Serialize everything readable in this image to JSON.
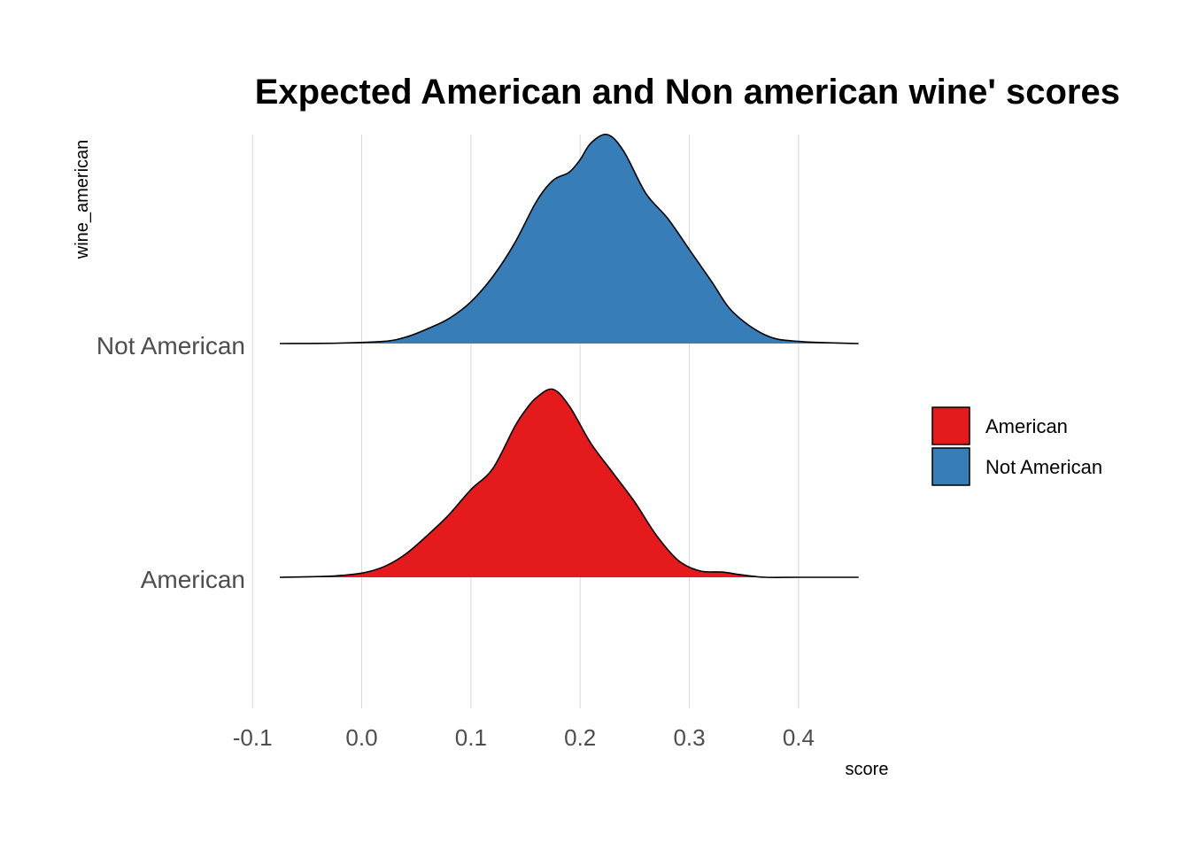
{
  "chart_data": {
    "type": "area",
    "subtype": "ridgeline-density",
    "title": "Expected American and Non american wine' scores",
    "xlabel": "score",
    "ylabel": "wine_american",
    "xlim": [
      -0.1,
      0.46
    ],
    "x_ticks": [
      "-0.1",
      "0.0",
      "0.1",
      "0.2",
      "0.3",
      "0.4"
    ],
    "categories": [
      "American",
      "Not American"
    ],
    "grid": "vertical major gridlines only",
    "legend_position": "right",
    "series": [
      {
        "name": "American",
        "color": "#e41a1c",
        "x": [
          -0.075,
          -0.03,
          0.0,
          0.02,
          0.04,
          0.06,
          0.08,
          0.1,
          0.12,
          0.14,
          0.15,
          0.16,
          0.175,
          0.19,
          0.21,
          0.23,
          0.25,
          0.27,
          0.29,
          0.31,
          0.33,
          0.35,
          0.37,
          0.4,
          0.455
        ],
        "density": [
          0.0,
          0.005,
          0.02,
          0.05,
          0.11,
          0.2,
          0.3,
          0.42,
          0.52,
          0.72,
          0.8,
          0.86,
          0.9,
          0.82,
          0.64,
          0.5,
          0.36,
          0.2,
          0.08,
          0.03,
          0.025,
          0.01,
          0.0,
          0.0,
          0.0
        ]
      },
      {
        "name": "Not American",
        "color": "#377eb8",
        "x": [
          -0.075,
          -0.02,
          0.02,
          0.04,
          0.06,
          0.08,
          0.1,
          0.12,
          0.14,
          0.16,
          0.175,
          0.19,
          0.2,
          0.21,
          0.225,
          0.24,
          0.26,
          0.28,
          0.3,
          0.32,
          0.34,
          0.37,
          0.4,
          0.455
        ],
        "density": [
          0.0,
          0.002,
          0.01,
          0.03,
          0.07,
          0.12,
          0.2,
          0.32,
          0.48,
          0.68,
          0.78,
          0.82,
          0.88,
          0.96,
          1.0,
          0.92,
          0.72,
          0.6,
          0.45,
          0.3,
          0.15,
          0.04,
          0.01,
          0.0
        ]
      }
    ]
  }
}
